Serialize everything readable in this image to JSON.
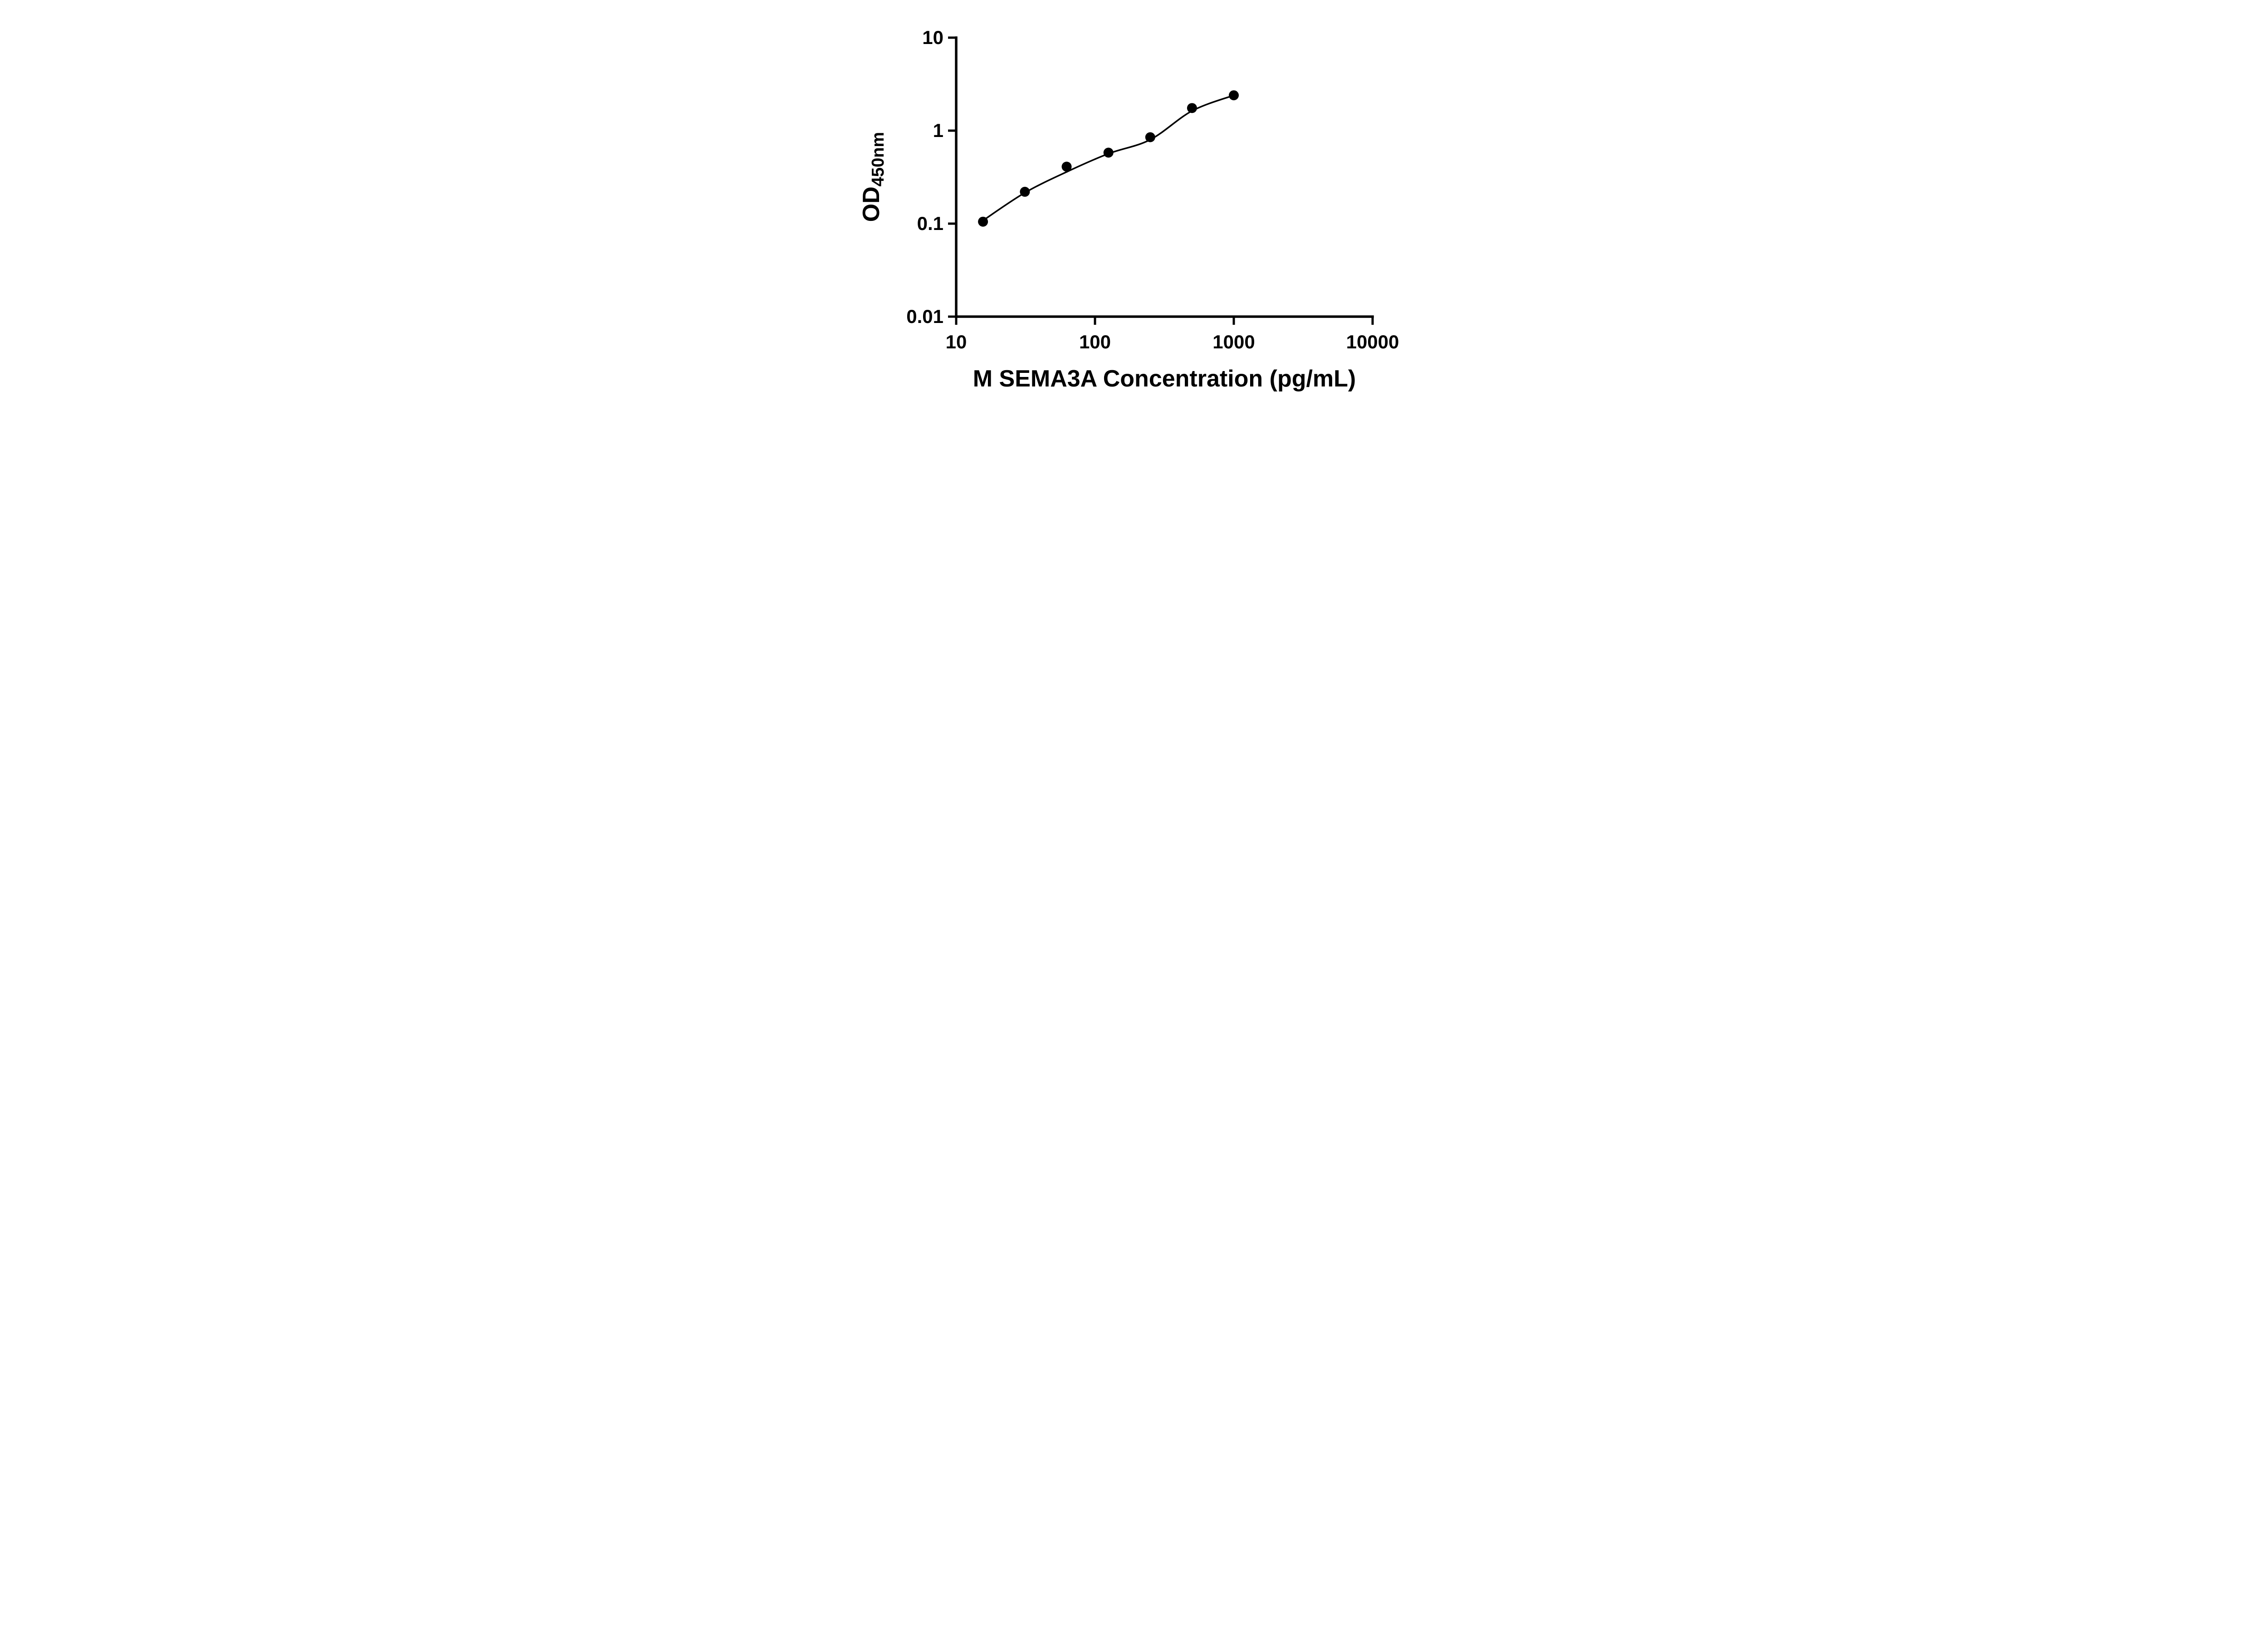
{
  "chart_data": {
    "type": "scatter",
    "title": "",
    "xlabel": "M SEMA3A Concentration (pg/mL)",
    "ylabel_main": "OD",
    "ylabel_sub": "450nm",
    "x_scale": "log",
    "y_scale": "log",
    "xlim": [
      10,
      10000
    ],
    "ylim": [
      0.01,
      10
    ],
    "x_ticks": [
      10,
      100,
      1000,
      10000
    ],
    "x_tick_labels": [
      "10",
      "100",
      "1000",
      "10000"
    ],
    "y_ticks": [
      0.01,
      0.1,
      1,
      10
    ],
    "y_tick_labels": [
      "0.01",
      "0.1",
      "1",
      "10"
    ],
    "grid": false,
    "legend": null,
    "point_color": "#000000",
    "curve_color": "#000000",
    "points": [
      {
        "x": 15.6,
        "y": 0.105
      },
      {
        "x": 31.25,
        "y": 0.22
      },
      {
        "x": 62.5,
        "y": 0.41
      },
      {
        "x": 125,
        "y": 0.58
      },
      {
        "x": 250,
        "y": 0.85
      },
      {
        "x": 500,
        "y": 1.75
      },
      {
        "x": 1000,
        "y": 2.4
      }
    ],
    "trend_line": {
      "description": "4PL standard-curve fit drawn through the points",
      "points": [
        {
          "x": 15.6,
          "y": 0.108
        },
        {
          "x": 31.25,
          "y": 0.215
        },
        {
          "x": 62.5,
          "y": 0.36
        },
        {
          "x": 125,
          "y": 0.565
        },
        {
          "x": 250,
          "y": 0.8
        },
        {
          "x": 500,
          "y": 1.63
        },
        {
          "x": 1000,
          "y": 2.4
        }
      ]
    }
  }
}
